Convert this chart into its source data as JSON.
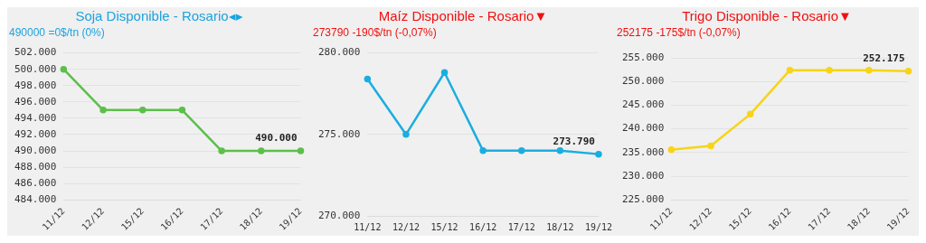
{
  "chart_data": [
    {
      "type": "line",
      "title": "Soja Disponible - Rosario◂▸",
      "subtitle": "490000 =0$/tn (0%)",
      "categories": [
        "11/12",
        "12/12",
        "15/12",
        "16/12",
        "17/12",
        "18/12",
        "19/12"
      ],
      "series": [
        {
          "color": "#5cbf4a",
          "values": [
            500000,
            495000,
            495000,
            495000,
            490000,
            490000,
            490000
          ],
          "value_labels": [
            null,
            null,
            null,
            null,
            null,
            null,
            "490.000"
          ]
        }
      ],
      "ylim": [
        484000,
        502000
      ],
      "yticks": [
        {
          "value": 484000,
          "label": "484.000"
        },
        {
          "value": 486000,
          "label": "486.000"
        },
        {
          "value": 488000,
          "label": "488.000"
        },
        {
          "value": 490000,
          "label": "490.000"
        },
        {
          "value": 492000,
          "label": "492.000"
        },
        {
          "value": 494000,
          "label": "494.000"
        },
        {
          "value": 496000,
          "label": "496.000"
        },
        {
          "value": 498000,
          "label": "498.000"
        },
        {
          "value": 500000,
          "label": "500.000"
        },
        {
          "value": 502000,
          "label": "502.000"
        }
      ],
      "grid": "y",
      "marker": "circle",
      "line_style": "solid"
    },
    {
      "type": "line",
      "title": "Maíz Disponible - Rosario▼",
      "subtitle": "273790 -190$/tn (-0,07%)",
      "categories": [
        "11/12",
        "12/12",
        "15/12",
        "16/12",
        "17/12",
        "18/12",
        "19/12"
      ],
      "series": [
        {
          "color": "#1aaee0",
          "values": [
            278400,
            275000,
            278800,
            274000,
            274000,
            274000,
            273790
          ],
          "value_labels": [
            null,
            null,
            null,
            null,
            null,
            null,
            "273.790"
          ]
        }
      ],
      "ylim": [
        270000,
        280000
      ],
      "yticks": [
        {
          "value": 270000,
          "label": "270.000"
        },
        {
          "value": 275000,
          "label": "275.000"
        },
        {
          "value": 280000,
          "label": "280.000"
        }
      ],
      "grid": "y",
      "marker": "circle",
      "line_style": "solid"
    },
    {
      "type": "line",
      "title": "Trigo Disponible - Rosario▼",
      "subtitle": "252175 -175$/tn (-0,07%)",
      "categories": [
        "11/12",
        "12/12",
        "15/12",
        "16/12",
        "17/12",
        "18/12",
        "19/12"
      ],
      "series": [
        {
          "color": "#f7d417",
          "values": [
            235600,
            236400,
            243100,
            252400,
            252400,
            252400,
            252175
          ],
          "value_labels": [
            null,
            null,
            null,
            null,
            null,
            null,
            "252.175"
          ]
        }
      ],
      "ylim": [
        225000,
        255000
      ],
      "yticks": [
        {
          "value": 225000,
          "label": "225.000"
        },
        {
          "value": 230000,
          "label": "230.000"
        },
        {
          "value": 235000,
          "label": "235.000"
        },
        {
          "value": 240000,
          "label": "240.000"
        },
        {
          "value": 245000,
          "label": "245.000"
        },
        {
          "value": 250000,
          "label": "250.000"
        },
        {
          "value": 255000,
          "label": "255.000"
        }
      ],
      "grid": "y",
      "marker": "circle",
      "line_style": "solid"
    }
  ]
}
